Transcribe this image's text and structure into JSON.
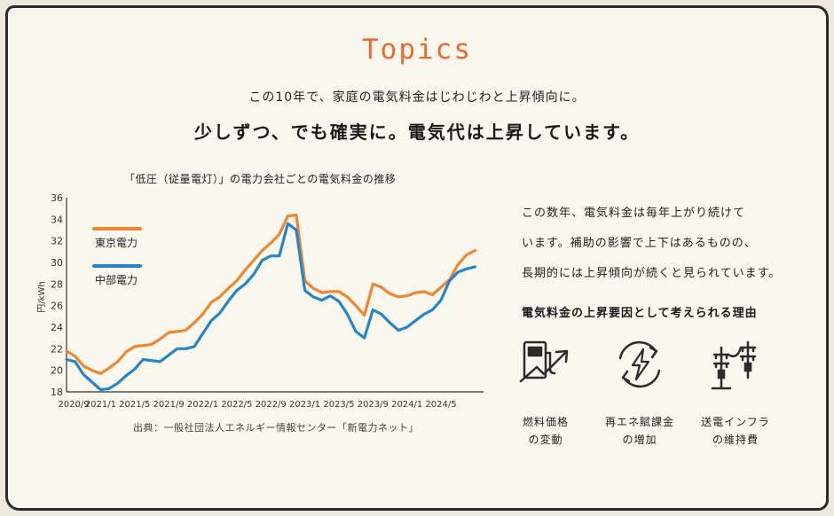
{
  "header": {
    "topics": "Topics",
    "subtitle": "この10年で、家庭の電気料金はじわじわと上昇傾向に。",
    "headline": "少しずつ、でも確実に。電気代は上昇しています。"
  },
  "description": [
    "この数年、電気料金は毎年上がり続けて",
    "います。補助の影響で上下はあるものの、",
    "長期的には上昇傾向が続くと見られています。"
  ],
  "reasons": {
    "title": "電気料金の上昇要因として考えられる理由",
    "items": [
      {
        "line1": "燃料価格",
        "line2": "の変動",
        "icon": "fuel-price-icon"
      },
      {
        "line1": "再エネ賦課金",
        "line2": "の増加",
        "icon": "renewable-energy-icon"
      },
      {
        "line1": "送電インフラ",
        "line2": "の維持費",
        "icon": "power-pylon-icon"
      }
    ]
  },
  "source": "出典：一般社団法人エネルギー情報センター「新電力ネット」",
  "colors": {
    "tokyo": "#f08630",
    "chubu": "#2585c8",
    "accent": "#ee6a2b",
    "highlight": "#f8d64a"
  },
  "chart_data": {
    "type": "line",
    "title": "「低圧（従量電灯）」の電力会社ごとの電気料金の推移",
    "ylabel": "円/kWh",
    "xlabel": "",
    "ylim": [
      18,
      36
    ],
    "yticks": [
      18,
      20,
      22,
      24,
      26,
      28,
      30,
      32,
      34,
      36
    ],
    "xlim": [
      "2020-09",
      "2024-10"
    ],
    "xticks": [
      "2020/9",
      "2021/1",
      "2021/5",
      "2021/9",
      "2022/1",
      "2022/5",
      "2022/9",
      "2023/1",
      "2023/5",
      "2023/9",
      "2024/1",
      "2024/5"
    ],
    "x": [
      "2020-09",
      "2020-10",
      "2020-11",
      "2020-12",
      "2021-01",
      "2021-02",
      "2021-03",
      "2021-04",
      "2021-05",
      "2021-06",
      "2021-07",
      "2021-08",
      "2021-09",
      "2021-10",
      "2021-11",
      "2021-12",
      "2022-01",
      "2022-02",
      "2022-03",
      "2022-04",
      "2022-05",
      "2022-06",
      "2022-07",
      "2022-08",
      "2022-09",
      "2022-10",
      "2022-11",
      "2022-12",
      "2023-01",
      "2023-02",
      "2023-03",
      "2023-04",
      "2023-05",
      "2023-06",
      "2023-07",
      "2023-08",
      "2023-09",
      "2023-10",
      "2023-11",
      "2023-12",
      "2024-01",
      "2024-02",
      "2024-03",
      "2024-04",
      "2024-05",
      "2024-06",
      "2024-07",
      "2024-08",
      "2024-09"
    ],
    "legend": "top-left",
    "series": [
      {
        "name": "東京電力",
        "color": "#f08630",
        "values": [
          21.8,
          21.3,
          20.4,
          20.0,
          19.7,
          20.2,
          20.8,
          21.7,
          22.2,
          22.3,
          22.4,
          22.9,
          23.5,
          23.6,
          23.7,
          24.4,
          25.2,
          26.3,
          26.8,
          27.6,
          28.3,
          29.3,
          30.2,
          31.1,
          31.8,
          32.6,
          34.3,
          34.4,
          28.3,
          27.6,
          27.2,
          27.3,
          27.3,
          26.8,
          26.0,
          25.1,
          28.0,
          27.7,
          27.1,
          26.8,
          26.9,
          27.2,
          27.3,
          27.0,
          27.7,
          28.4,
          29.8,
          30.7,
          31.1
        ]
      },
      {
        "name": "中部電力",
        "color": "#2585c8",
        "values": [
          21.0,
          20.8,
          19.6,
          18.9,
          18.2,
          18.3,
          18.8,
          19.5,
          20.1,
          21.0,
          20.9,
          20.8,
          21.4,
          22.0,
          22.0,
          22.2,
          23.4,
          24.6,
          25.3,
          26.4,
          27.4,
          28.0,
          28.9,
          30.2,
          30.6,
          30.6,
          33.6,
          33.0,
          27.4,
          26.8,
          26.5,
          26.9,
          26.4,
          25.2,
          23.6,
          23.0,
          25.6,
          25.2,
          24.4,
          23.7,
          24.0,
          24.6,
          25.2,
          25.6,
          26.5,
          28.3,
          29.1,
          29.4,
          29.6
        ]
      }
    ]
  }
}
